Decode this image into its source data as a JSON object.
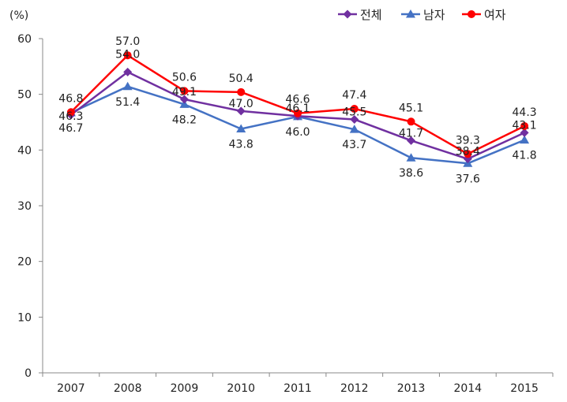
{
  "chart_data": {
    "type": "line",
    "unit_label": "(%)",
    "categories": [
      "2007",
      "2008",
      "2009",
      "2010",
      "2011",
      "2012",
      "2013",
      "2014",
      "2015"
    ],
    "ylim": [
      0,
      60
    ],
    "y_ticks": [
      "0",
      "10",
      "20",
      "30",
      "40",
      "50",
      "60"
    ],
    "grid": false,
    "legend_position": "top-right",
    "series": [
      {
        "name": "전체",
        "color": "#7030A0",
        "marker": "diamond",
        "values": [
          46.3,
          54.0,
          49.1,
          47.0,
          46.1,
          45.5,
          41.7,
          38.4,
          43.1
        ],
        "labels": [
          "46.3",
          "54.0",
          "49.1",
          "47.0",
          "46.1",
          "45.5",
          "41.7",
          "38.4",
          "43.1"
        ]
      },
      {
        "name": "남자",
        "color": "#4472C4",
        "marker": "triangle",
        "values": [
          46.7,
          51.4,
          48.2,
          43.8,
          46.0,
          43.7,
          38.6,
          37.6,
          41.8
        ],
        "labels": [
          "46.7",
          "51.4",
          "48.2",
          "43.8",
          "46.0",
          "43.7",
          "38.6",
          "37.6",
          "41.8"
        ]
      },
      {
        "name": "여자",
        "color": "#FF0000",
        "marker": "circle",
        "values": [
          46.8,
          57.0,
          50.6,
          50.4,
          46.6,
          47.4,
          45.1,
          39.3,
          44.3
        ],
        "labels": [
          "46.8",
          "57.0",
          "50.6",
          "50.4",
          "46.6",
          "47.4",
          "45.1",
          "39.3",
          "44.3"
        ]
      }
    ]
  }
}
